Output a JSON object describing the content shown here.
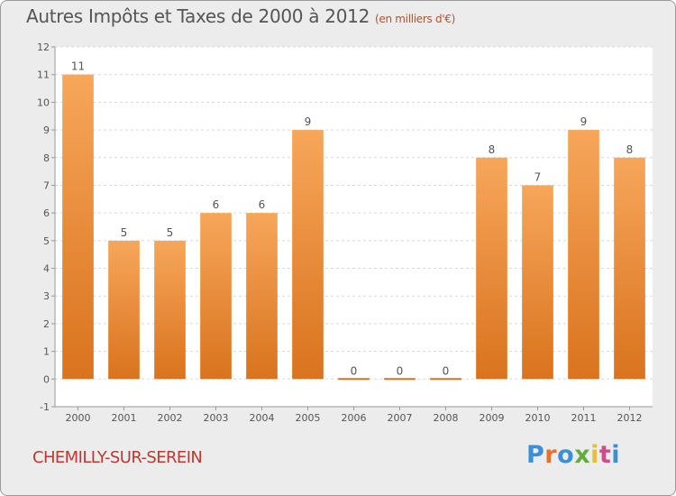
{
  "header": {
    "title": "Autres Impôts et Taxes de 2000 à 2012",
    "unit": "(en milliers d'€)"
  },
  "footer": {
    "commune": "CHEMILLY-SUR-SEREIN",
    "brand": "Proxiti"
  },
  "colors": {
    "bar_light": "#f7a65a",
    "bar_dark": "#d9731e",
    "plot_bg": "#ffffff",
    "grid": "#d8d8d8"
  },
  "chart_data": {
    "type": "bar",
    "title": "Autres Impôts et Taxes de 2000 à 2012",
    "subtitle": "(en milliers d'€)",
    "xlabel": "",
    "ylabel": "",
    "categories": [
      "2000",
      "2001",
      "2002",
      "2003",
      "2004",
      "2005",
      "2006",
      "2007",
      "2008",
      "2009",
      "2010",
      "2011",
      "2012"
    ],
    "values": [
      11,
      5,
      5,
      6,
      6,
      9,
      0,
      0,
      0,
      8,
      7,
      9,
      8
    ],
    "value_labels": [
      "11",
      "5",
      "5",
      "6",
      "6",
      "9",
      "0",
      "0",
      "0",
      "8",
      "7",
      "9",
      "8"
    ],
    "ylim": [
      -1,
      12
    ],
    "yticks": [
      -1,
      0,
      1,
      2,
      3,
      4,
      5,
      6,
      7,
      8,
      9,
      10,
      11,
      12
    ],
    "ytick_labels": [
      "-1",
      "0",
      "1",
      "2",
      "3",
      "4",
      "5",
      "6",
      "7",
      "8",
      "9",
      "10",
      "11",
      "12"
    ],
    "grid": true,
    "legend": "none"
  }
}
